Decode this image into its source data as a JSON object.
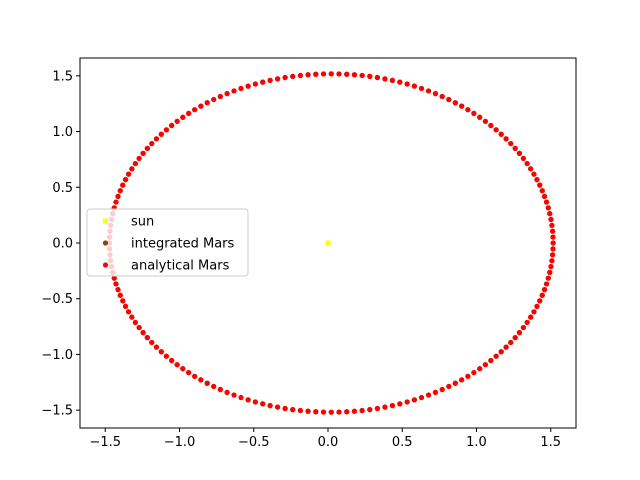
{
  "chart_data": {
    "type": "scatter",
    "title": "",
    "xlabel": "",
    "ylabel": "",
    "xlim": [
      -1.67,
      1.67
    ],
    "ylim": [
      -1.66,
      1.66
    ],
    "xticks": [
      -1.5,
      -1.0,
      -0.5,
      0.0,
      0.5,
      1.0,
      1.5
    ],
    "yticks": [
      -1.5,
      -1.0,
      -0.5,
      0.0,
      0.5,
      1.0,
      1.5
    ],
    "xtick_labels": [
      "−1.5",
      "−1.0",
      "−0.5",
      "0.0",
      "0.5",
      "1.0",
      "1.5"
    ],
    "ytick_labels": [
      "−1.5",
      "−1.0",
      "−0.5",
      "0.0",
      "0.5",
      "1.0",
      "1.5"
    ],
    "grid": false,
    "legend_position": "center-left",
    "series": [
      {
        "name": "sun",
        "color": "#ffff00",
        "marker": "square",
        "points": [
          [
            0.0,
            0.0
          ]
        ]
      },
      {
        "name": "integrated Mars",
        "color": "#8b4513",
        "marker": "circle",
        "orbit": {
          "center_x": 0.022,
          "center_y": 0.0,
          "semi_x": 1.494,
          "semi_y": 1.518,
          "n_points": 180
        }
      },
      {
        "name": "analytical Mars",
        "color": "#ff0000",
        "marker": "circle",
        "orbit": {
          "center_x": 0.022,
          "center_y": 0.0,
          "semi_x": 1.494,
          "semi_y": 1.518,
          "n_points": 180
        }
      }
    ]
  }
}
